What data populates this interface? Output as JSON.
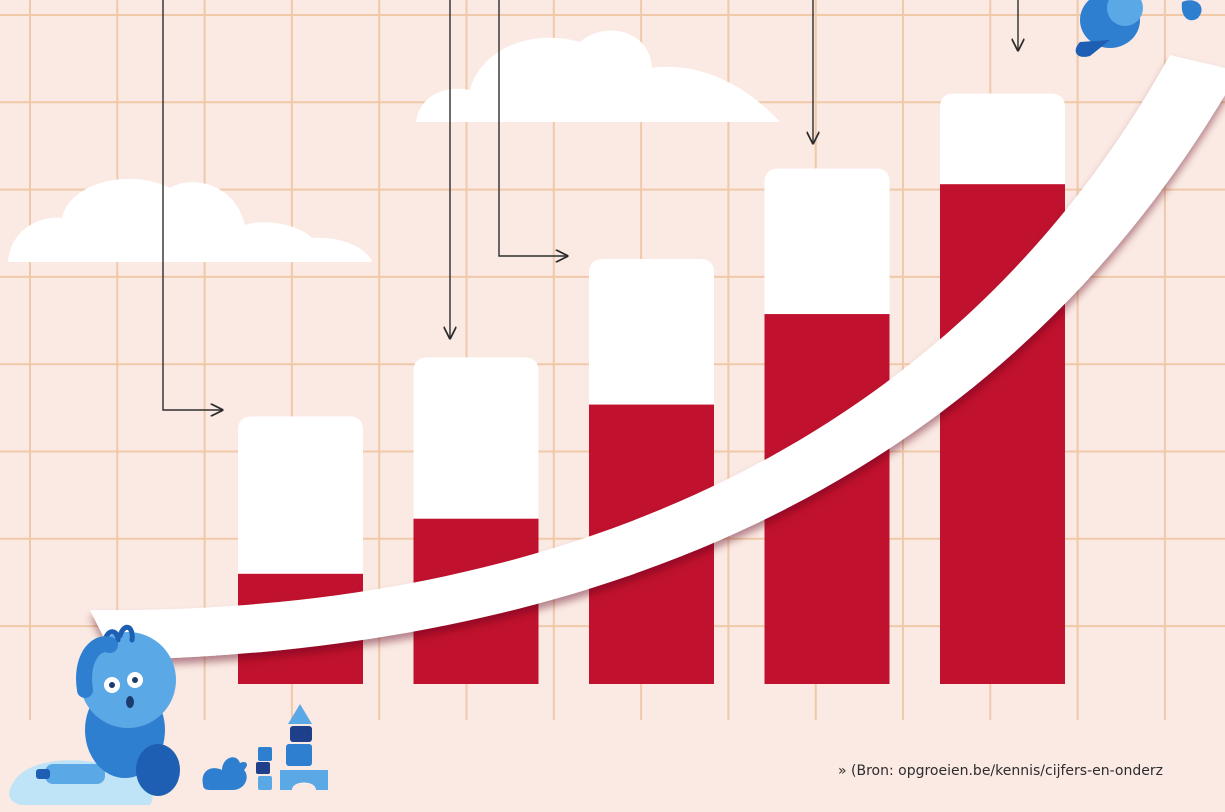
{
  "colors": {
    "background": "#fbe9e4",
    "grid": "#f0c9a8",
    "bar_top": "#ffffff",
    "bar_fill": "#c0112e",
    "bar_shadow": "#7a0d1f",
    "swoosh": "#ffffff",
    "figure_blue": "#2f7fd1",
    "figure_dark": "#1e5fb3",
    "figure_light": "#bfe3f7"
  },
  "chart_data": {
    "type": "bar",
    "categories": [
      "",
      "",
      "",
      "",
      ""
    ],
    "series": [
      {
        "values": [
          28,
          42,
          71,
          94,
          127
        ]
      },
      {
        "values": [
          68,
          83,
          108,
          131,
          150
        ]
      }
    ],
    "ylim": [
      0,
      155
    ],
    "grid": true,
    "legend": "none"
  },
  "source_text": "» (Bron: opgroeien.be/kennis/cijfers-en-onderz"
}
